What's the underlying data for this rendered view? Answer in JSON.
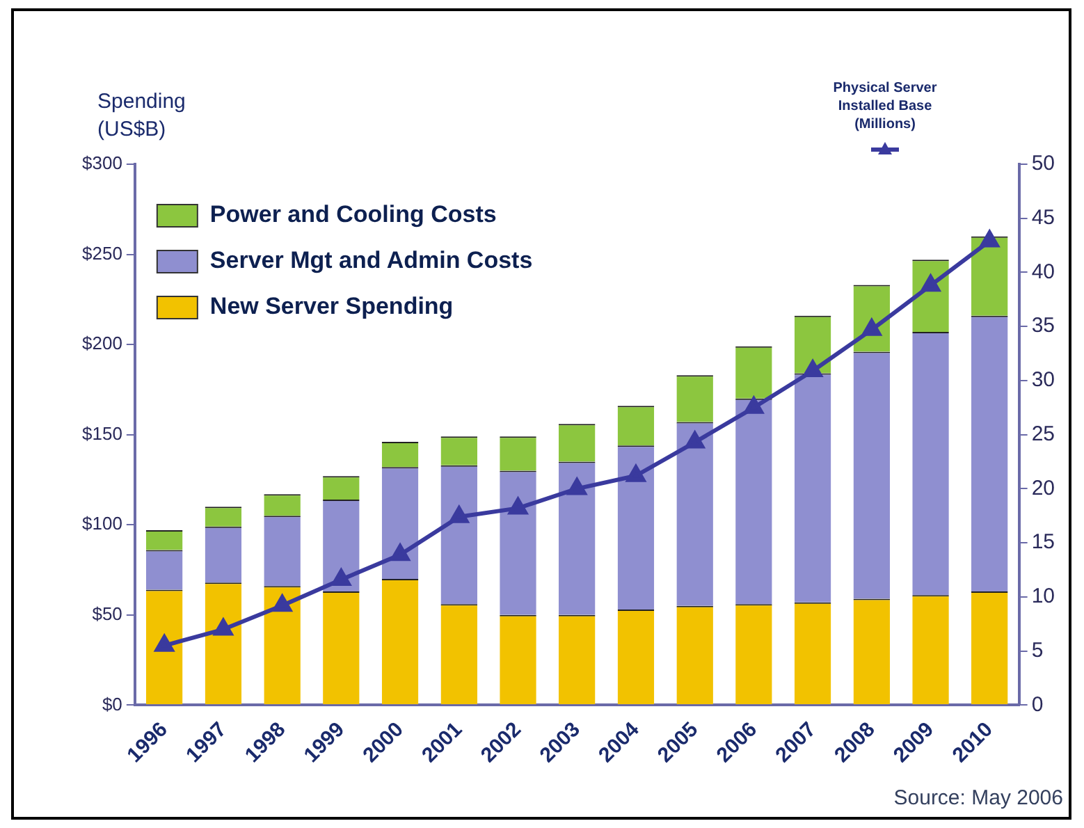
{
  "chart_data": {
    "type": "bar",
    "stacked": true,
    "ylabel": "Spending (US$B)",
    "y2label": "Physical Server Installed Base (Millions)",
    "categories": [
      "1996",
      "1997",
      "1998",
      "1999",
      "2000",
      "2001",
      "2002",
      "2003",
      "2004",
      "2005",
      "2006",
      "2007",
      "2008",
      "2009",
      "2010"
    ],
    "series": [
      {
        "name": "New Server Spending",
        "color": "#f2c200",
        "values": [
          64,
          68,
          66,
          63,
          70,
          56,
          50,
          50,
          53,
          55,
          56,
          57,
          59,
          61,
          63
        ]
      },
      {
        "name": "Server Mgt and Admin Costs",
        "color": "#8f8fd0",
        "values": [
          22,
          31,
          39,
          51,
          62,
          77,
          80,
          85,
          91,
          102,
          114,
          127,
          137,
          146,
          153
        ]
      },
      {
        "name": "Power and Cooling Costs",
        "color": "#8cc63f",
        "values": [
          11,
          11,
          12,
          13,
          14,
          16,
          19,
          21,
          22,
          26,
          29,
          32,
          37,
          40,
          44
        ]
      },
      {
        "type": "line",
        "axis": "y2",
        "color": "#3a3a9e",
        "marker": "triangle",
        "values": [
          5.5,
          7.0,
          9.2,
          11.6,
          13.9,
          17.4,
          18.2,
          20.0,
          21.2,
          24.3,
          27.5,
          30.9,
          34.7,
          38.8,
          42.9
        ]
      }
    ],
    "ylim": [
      0,
      300
    ],
    "yticks": [
      {
        "value": 0,
        "label": "$0"
      },
      {
        "value": 50,
        "label": "$50"
      },
      {
        "value": 100,
        "label": "$100"
      },
      {
        "value": 150,
        "label": "$150"
      },
      {
        "value": 200,
        "label": "$200"
      },
      {
        "value": 250,
        "label": "$250"
      },
      {
        "value": 300,
        "label": "$300"
      }
    ],
    "y2lim": [
      0,
      50
    ],
    "y2ticks": [
      0,
      5,
      10,
      15,
      20,
      25,
      30,
      35,
      40,
      45,
      50
    ],
    "legend": "top left",
    "grid": false,
    "annotations": [
      "Source: May 2006"
    ]
  }
}
